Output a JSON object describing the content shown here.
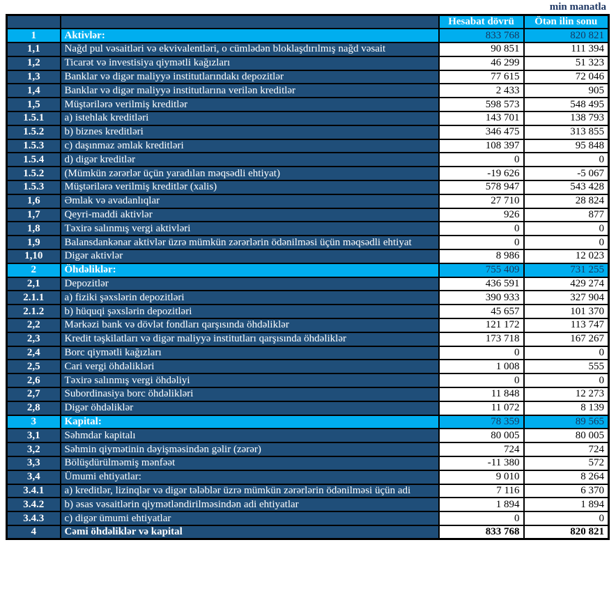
{
  "unit_label": "min manatla",
  "columns": [
    "Hesabat dövrü",
    "Ötən ilin sonu"
  ],
  "colors": {
    "cyan": "#00AEEF",
    "navy": "#1F4E79",
    "section_value_text": "#17375E",
    "border": "#000000"
  },
  "rows": [
    {
      "num": "1",
      "label": "Aktivlər:",
      "current": "833 768",
      "previous": "820 821",
      "type": "section"
    },
    {
      "num": "1,1",
      "label": "Nağd pul vəsaitləri və ekvivalentləri, o cümlədən bloklaşdırılmış nağd vəsait",
      "current": "90 851",
      "previous": "111 394",
      "type": "item"
    },
    {
      "num": "1,2",
      "label": "Ticarət və investisiya qiymətli kağızları",
      "current": "46 299",
      "previous": "51 323",
      "type": "item"
    },
    {
      "num": "1,3",
      "label": "Banklar və digər maliyyə institutlarındakı depozitlər",
      "current": "77 615",
      "previous": "72 046",
      "type": "item"
    },
    {
      "num": "1,4",
      "label": "Banklar və digər maliyyə institutlarına verilən kreditlər",
      "current": "2 433",
      "previous": "905",
      "type": "item"
    },
    {
      "num": "1,5",
      "label": "Müştərilərə verilmiş kreditlər",
      "current": "598 573",
      "previous": "548 495",
      "type": "item"
    },
    {
      "num": "1.5.1",
      "label": "a) istehlak kreditləri",
      "current": "143 701",
      "previous": "138 793",
      "type": "item"
    },
    {
      "num": "1.5.2",
      "label": "b) biznes kreditləri",
      "current": "346 475",
      "previous": "313 855",
      "type": "item"
    },
    {
      "num": "1.5.3",
      "label": "c) daşınmaz əmlak kreditləri",
      "current": "108 397",
      "previous": "95 848",
      "type": "item"
    },
    {
      "num": "1.5.4",
      "label": "d) digər kreditlər",
      "current": "0",
      "previous": "0",
      "type": "item"
    },
    {
      "num": "1.5.2",
      "label": "(Mümkün zərərlər üçün yaradılan məqsədli ehtiyat)",
      "current": "-19 626",
      "previous": "-5 067",
      "type": "item"
    },
    {
      "num": "1.5.3",
      "label": "Müştərilərə verilmiş kreditlər (xalis)",
      "current": "578 947",
      "previous": "543 428",
      "type": "item"
    },
    {
      "num": "1,6",
      "label": "Əmlak və avadanlıqlar",
      "current": "27 710",
      "previous": "28 824",
      "type": "item"
    },
    {
      "num": "1,7",
      "label": "Qeyri-maddi aktivlər",
      "current": "926",
      "previous": "877",
      "type": "item"
    },
    {
      "num": "1,8",
      "label": "Təxirə salınmış vergi aktivləri",
      "current": "0",
      "previous": "0",
      "type": "item"
    },
    {
      "num": "1,9",
      "label": "Balansdankənar aktivlər üzrə mümkün zərərlərin ödənilməsi üçün məqsədli ehtiyat",
      "current": "0",
      "previous": "0",
      "type": "item"
    },
    {
      "num": "1,10",
      "label": "Digər aktivlər",
      "current": "8 986",
      "previous": "12 023",
      "type": "item"
    },
    {
      "num": "2",
      "label": "Öhdəliklər:",
      "current": "755 409",
      "previous": "731 255",
      "type": "section"
    },
    {
      "num": "2,1",
      "label": "Depozitlər",
      "current": "436 591",
      "previous": "429 274",
      "type": "item"
    },
    {
      "num": "2.1.1",
      "label": "a) fiziki şəxslərin depozitləri",
      "current": "390 933",
      "previous": "327 904",
      "type": "item"
    },
    {
      "num": "2.1.2",
      "label": "b) hüquqi şəxslərin depozitləri",
      "current": "45 657",
      "previous": "101 370",
      "type": "item"
    },
    {
      "num": "2,2",
      "label": "Mərkəzi bank və dövlət fondları qarşısında öhdəliklər",
      "current": "121 172",
      "previous": "113 747",
      "type": "item"
    },
    {
      "num": "2,3",
      "label": "Kredit təşkilatları və digər maliyyə institutları qarşısında öhdəliklər",
      "current": "173 718",
      "previous": "167 267",
      "type": "item"
    },
    {
      "num": "2,4",
      "label": "Borc qiymətli kağızları",
      "current": "0",
      "previous": "0",
      "type": "item"
    },
    {
      "num": "2,5",
      "label": "Cari vergi öhdəlikləri",
      "current": "1 008",
      "previous": "555",
      "type": "item"
    },
    {
      "num": "2,6",
      "label": "Təxirə salınmış vergi öhdəliyi",
      "current": "0",
      "previous": "0",
      "type": "item"
    },
    {
      "num": "2,7",
      "label": "Subordinasiya borc öhdəlikləri",
      "current": "11 848",
      "previous": "12 273",
      "type": "item"
    },
    {
      "num": "2,8",
      "label": "Digər öhdəliklər",
      "current": "11 072",
      "previous": "8 139",
      "type": "item"
    },
    {
      "num": "3",
      "label": "Kapital:",
      "current": "78 359",
      "previous": "89 565",
      "type": "section"
    },
    {
      "num": "3,1",
      "label": "Səhmdar kapitalı",
      "current": "80 005",
      "previous": "80 005",
      "type": "item"
    },
    {
      "num": "3,2",
      "label": "Səhmin qiymətinin dəyişməsindən gəlir (zərər)",
      "current": "724",
      "previous": "724",
      "type": "item"
    },
    {
      "num": "3,3",
      "label": "Bölüşdürülməmiş mənfəət",
      "current": "-11 380",
      "previous": "572",
      "type": "item"
    },
    {
      "num": "3,4",
      "label": "Ümumi ehtiyatlar:",
      "current": "9 010",
      "previous": "8 264",
      "type": "item"
    },
    {
      "num": "3.4.1",
      "label": "a) kreditlər, lizinqlər və digər tələblər üzrə mümkün zərərlərin ödənilməsi üçün adi",
      "current": "7 116",
      "previous": "6 370",
      "type": "item"
    },
    {
      "num": "3.4.2",
      "label": "b) əsas vəsaitlərin qiymətləndirilməsindən adi ehtiyatlar",
      "current": "1 894",
      "previous": "1 894",
      "type": "item"
    },
    {
      "num": "3.4.3",
      "label": "c) digər ümumi ehtiyatlar",
      "current": "0",
      "previous": "0",
      "type": "item"
    },
    {
      "num": "4",
      "label": "Cəmi öhdəliklər və kapital",
      "current": "833 768",
      "previous": "820 821",
      "type": "total"
    }
  ]
}
